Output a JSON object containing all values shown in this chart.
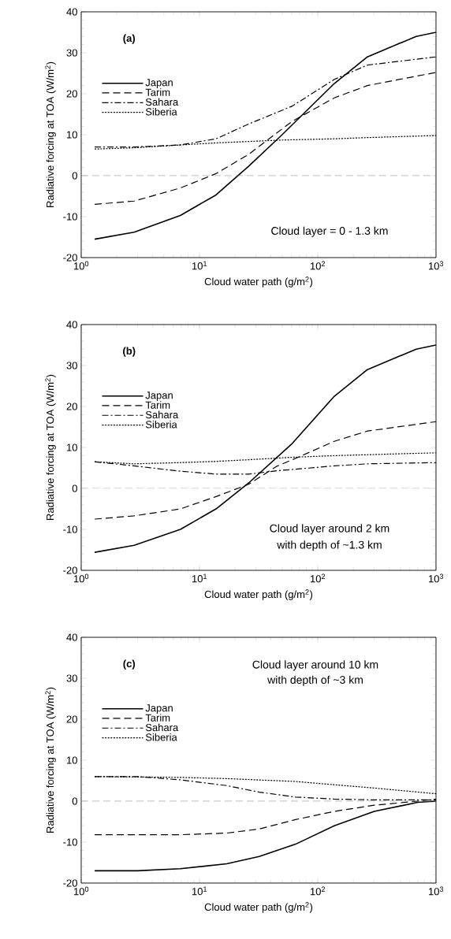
{
  "chart_data": [
    {
      "type": "line",
      "title": "(a)",
      "xlabel": "Cloud water path (g/m$^{2}$)",
      "ylabel": "Radiative forcing at TOA (W/m$^{2}$)",
      "log": "x",
      "xlim": [
        1,
        1000
      ],
      "ylim": [
        -20,
        40
      ],
      "xticks": [
        {
          "value": 1,
          "label": "10$^{0}$"
        },
        {
          "value": 10,
          "label": "10$^{1}$"
        },
        {
          "value": 100,
          "label": "10$^{2}$"
        },
        {
          "value": 1000,
          "label": "10$^{3}$"
        }
      ],
      "yticks": [
        -20,
        -10,
        0,
        10,
        20,
        30,
        40
      ],
      "legend": "top left",
      "annotations": [
        "Cloud layer = 0 - 1.3 km"
      ],
      "ref_lines": [
        {
          "axis": "y",
          "value": 0,
          "color": "#808080",
          "line_style": "dashed"
        }
      ],
      "series": [
        {
          "name": "Japan",
          "color": "#000000",
          "line_style": "solid",
          "x": [
            1.3,
            2.8,
            6.9,
            13.8,
            26,
            50,
            138,
            263,
            680,
            1000
          ],
          "values": [
            -15.5,
            -13.8,
            -9.7,
            -4.7,
            2.3,
            10,
            22.5,
            29,
            34,
            35
          ]
        },
        {
          "name": "Tarim",
          "color": "#000000",
          "line_style": "dashed",
          "x": [
            1.3,
            2.8,
            6.9,
            13.8,
            26,
            61,
            138,
            263,
            1000
          ],
          "values": [
            -7,
            -6.2,
            -3,
            0.5,
            5.2,
            13.3,
            19,
            22,
            25.2
          ]
        },
        {
          "name": "Sahara",
          "color": "#000000",
          "line_style": "dashdot",
          "x": [
            1.3,
            2.8,
            6.9,
            13.8,
            26,
            61,
            138,
            263,
            1000
          ],
          "values": [
            7,
            7,
            7.5,
            9,
            12.6,
            17,
            23.5,
            27,
            29
          ]
        },
        {
          "name": "Siberia",
          "color": "#000000",
          "line_style": "dotted",
          "x": [
            1.3,
            2.8,
            6.9,
            13.8,
            50,
            138,
            263,
            1000
          ],
          "values": [
            6.5,
            6.8,
            7.5,
            8,
            8.7,
            9,
            9.3,
            9.8
          ]
        }
      ]
    },
    {
      "type": "line",
      "title": "(b)",
      "xlabel": "Cloud water path (g/m$^{2}$)",
      "ylabel": "Radiative forcing at TOA (W/m$^{2}$)",
      "log": "x",
      "xlim": [
        1,
        1000
      ],
      "ylim": [
        -20,
        40
      ],
      "xticks": [
        {
          "value": 1,
          "label": "10$^{0}$"
        },
        {
          "value": 10,
          "label": "10$^{1}$"
        },
        {
          "value": 100,
          "label": "10$^{2}$"
        },
        {
          "value": 1000,
          "label": "10$^{3}$"
        }
      ],
      "yticks": [
        -20,
        -10,
        0,
        10,
        20,
        30,
        40
      ],
      "legend": "top left",
      "annotations": [
        "Cloud layer around 2 km",
        "with depth of ~1.3 km"
      ],
      "ref_lines": [
        {
          "axis": "y",
          "value": 0,
          "color": "#808080",
          "line_style": "dashed"
        }
      ],
      "series": [
        {
          "name": "Japan",
          "color": "#000000",
          "line_style": "solid",
          "x": [
            1.3,
            2.8,
            6.9,
            13.8,
            26,
            61,
            138,
            263,
            680,
            1000
          ],
          "values": [
            -15.6,
            -13.9,
            -10,
            -5,
            1.3,
            11,
            22.5,
            29,
            34,
            35
          ]
        },
        {
          "name": "Tarim",
          "color": "#000000",
          "line_style": "dashed",
          "x": [
            1.3,
            2.8,
            6.9,
            13.8,
            26,
            45,
            61,
            138,
            263,
            1000
          ],
          "values": [
            -7.5,
            -6.7,
            -5,
            -2,
            1,
            5.4,
            7,
            11.5,
            14,
            16.3
          ]
        },
        {
          "name": "Sahara",
          "color": "#000000",
          "line_style": "dashdot",
          "x": [
            1.3,
            2.8,
            6.9,
            13.8,
            26,
            45,
            138,
            263,
            1000
          ],
          "values": [
            6.5,
            5.5,
            4.2,
            3.5,
            3.5,
            4.3,
            5.5,
            6,
            6.3
          ]
        },
        {
          "name": "Siberia",
          "color": "#000000",
          "line_style": "dotted",
          "x": [
            1.3,
            2.8,
            6.9,
            13.8,
            26,
            61,
            138,
            1000
          ],
          "values": [
            6.5,
            6,
            6.3,
            6.6,
            7,
            7.6,
            8,
            8.7
          ]
        }
      ]
    },
    {
      "type": "line",
      "title": "(c)",
      "xlabel": "Cloud water path (g/m$^{2}$)",
      "ylabel": "Radiative forcing at TOA (W/m$^{2}$)",
      "log": "x",
      "xlim": [
        1,
        1000
      ],
      "ylim": [
        -20,
        40
      ],
      "xticks": [
        {
          "value": 1,
          "label": "10$^{0}$"
        },
        {
          "value": 10,
          "label": "10$^{1}$"
        },
        {
          "value": 100,
          "label": "10$^{2}$"
        },
        {
          "value": 1000,
          "label": "10$^{3}$"
        }
      ],
      "yticks": [
        -20,
        -10,
        0,
        10,
        20,
        30,
        40
      ],
      "legend": "top left",
      "annotations": [
        "Cloud layer around 10 km",
        "with depth of ~3 km"
      ],
      "ref_lines": [
        {
          "axis": "y",
          "value": 0,
          "color": "#808080",
          "line_style": "dashed"
        }
      ],
      "series": [
        {
          "name": "Japan",
          "color": "#000000",
          "line_style": "solid",
          "x": [
            1.3,
            3,
            6.9,
            17,
            32,
            65,
            138,
            300,
            700,
            1000
          ],
          "values": [
            -17,
            -17,
            -16.5,
            -15.3,
            -13.5,
            -10.5,
            -6,
            -2.5,
            -0.3,
            0
          ]
        },
        {
          "name": "Tarim",
          "color": "#000000",
          "line_style": "dashed",
          "x": [
            1.3,
            6.9,
            17,
            32,
            65,
            138,
            300,
            700,
            1000
          ],
          "values": [
            -8.2,
            -8.2,
            -7.8,
            -6.8,
            -4.5,
            -2.5,
            -1,
            0,
            0.5
          ]
        },
        {
          "name": "Sahara",
          "color": "#000000",
          "line_style": "dashdot",
          "x": [
            1.3,
            3,
            6.9,
            17,
            32,
            65,
            138,
            300,
            1000
          ],
          "values": [
            6,
            6,
            5.2,
            3.8,
            2.2,
            1,
            0.5,
            0.3,
            0.3
          ]
        },
        {
          "name": "Siberia",
          "color": "#000000",
          "line_style": "dotted",
          "x": [
            1.3,
            6.9,
            17,
            65,
            138,
            300,
            1000
          ],
          "values": [
            6,
            5.8,
            5.5,
            4.8,
            4,
            3.2,
            1.8
          ]
        }
      ]
    }
  ]
}
